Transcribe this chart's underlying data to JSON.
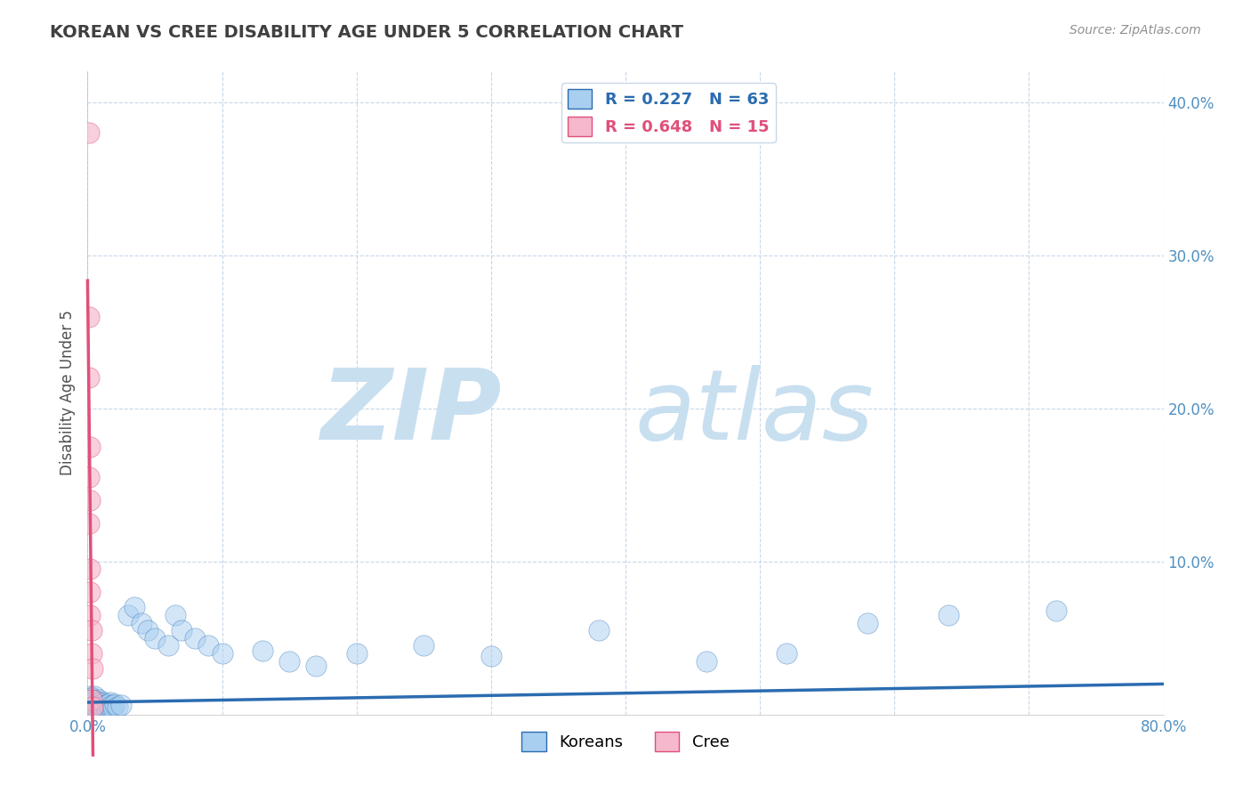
{
  "title": "KOREAN VS CREE DISABILITY AGE UNDER 5 CORRELATION CHART",
  "source": "Source: ZipAtlas.com",
  "ylabel": "Disability Age Under 5",
  "xlim": [
    0.0,
    0.8
  ],
  "ylim": [
    0.0,
    0.42
  ],
  "xticks": [
    0.0,
    0.1,
    0.2,
    0.3,
    0.4,
    0.5,
    0.6,
    0.7,
    0.8
  ],
  "yticks": [
    0.0,
    0.1,
    0.2,
    0.3,
    0.4
  ],
  "ytick_labels": [
    "",
    "10.0%",
    "20.0%",
    "30.0%",
    "40.0%"
  ],
  "xtick_labels": [
    "0.0%",
    "",
    "",
    "",
    "",
    "",
    "",
    "",
    "80.0%"
  ],
  "korean_R": 0.227,
  "korean_N": 63,
  "cree_R": 0.648,
  "cree_N": 15,
  "korean_color": "#a8cef0",
  "cree_color": "#f5b8cc",
  "korean_line_color": "#2b6cb0",
  "cree_line_color": "#e0507a",
  "background_color": "#ffffff",
  "grid_color": "#c8d8e8",
  "watermark_zip": "ZIP",
  "watermark_atlas": "atlas",
  "watermark_color": "#c8dff0",
  "title_color": "#404040",
  "source_color": "#909090",
  "axis_label_color": "#505050",
  "tick_color": "#5090c0",
  "korean_x": [
    0.001,
    0.001,
    0.001,
    0.001,
    0.002,
    0.002,
    0.002,
    0.002,
    0.003,
    0.003,
    0.003,
    0.003,
    0.004,
    0.004,
    0.004,
    0.005,
    0.005,
    0.005,
    0.006,
    0.006,
    0.007,
    0.007,
    0.008,
    0.008,
    0.009,
    0.009,
    0.01,
    0.01,
    0.011,
    0.012,
    0.013,
    0.014,
    0.015,
    0.016,
    0.017,
    0.018,
    0.019,
    0.02,
    0.022,
    0.025,
    0.03,
    0.035,
    0.04,
    0.045,
    0.05,
    0.06,
    0.065,
    0.07,
    0.08,
    0.09,
    0.1,
    0.13,
    0.15,
    0.17,
    0.2,
    0.25,
    0.3,
    0.38,
    0.46,
    0.52,
    0.58,
    0.64,
    0.72
  ],
  "korean_y": [
    0.01,
    0.005,
    0.008,
    0.003,
    0.012,
    0.006,
    0.009,
    0.004,
    0.007,
    0.011,
    0.005,
    0.008,
    0.006,
    0.01,
    0.004,
    0.008,
    0.005,
    0.012,
    0.006,
    0.009,
    0.004,
    0.007,
    0.005,
    0.01,
    0.006,
    0.008,
    0.004,
    0.007,
    0.005,
    0.008,
    0.006,
    0.004,
    0.007,
    0.005,
    0.008,
    0.006,
    0.004,
    0.007,
    0.005,
    0.006,
    0.065,
    0.07,
    0.06,
    0.055,
    0.05,
    0.045,
    0.065,
    0.055,
    0.05,
    0.045,
    0.04,
    0.042,
    0.035,
    0.032,
    0.04,
    0.045,
    0.038,
    0.055,
    0.035,
    0.04,
    0.06,
    0.065,
    0.068
  ],
  "cree_x": [
    0.0008,
    0.0009,
    0.001,
    0.001,
    0.001,
    0.0015,
    0.002,
    0.002,
    0.002,
    0.002,
    0.003,
    0.003,
    0.003,
    0.004,
    0.004
  ],
  "cree_y": [
    0.38,
    0.26,
    0.22,
    0.155,
    0.125,
    0.175,
    0.095,
    0.065,
    0.14,
    0.08,
    0.055,
    0.04,
    0.01,
    0.03,
    0.005
  ]
}
